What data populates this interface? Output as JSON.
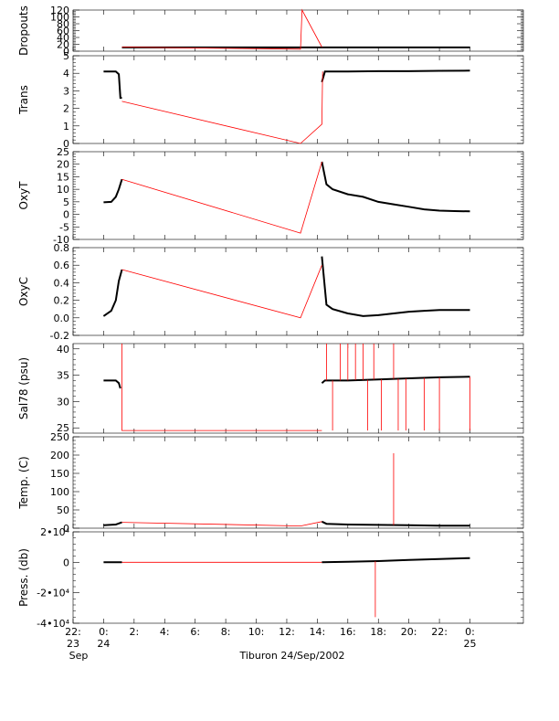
{
  "footer_label": "Tiburon 24/Sep/2002",
  "x_axis": {
    "ticks": [
      {
        "value": -2,
        "label": "22:",
        "sub": "23",
        "sub2": "Sep"
      },
      {
        "value": 0,
        "label": "0:",
        "sub": "24"
      },
      {
        "value": 2,
        "label": "2:"
      },
      {
        "value": 4,
        "label": "4:"
      },
      {
        "value": 6,
        "label": "6:"
      },
      {
        "value": 8,
        "label": "8:"
      },
      {
        "value": 10,
        "label": "10:"
      },
      {
        "value": 12,
        "label": "12:"
      },
      {
        "value": 14,
        "label": "14:"
      },
      {
        "value": 16,
        "label": "16:"
      },
      {
        "value": 18,
        "label": "18:"
      },
      {
        "value": 20,
        "label": "20:"
      },
      {
        "value": 22,
        "label": "22:"
      },
      {
        "value": 24,
        "label": "0:",
        "sub": "25"
      }
    ],
    "range": [
      -2,
      27.5
    ]
  },
  "colors": {
    "good": "#000000",
    "flagged": "#ff0000",
    "axis": "#000000"
  },
  "chart_data": [
    {
      "type": "line",
      "ylabel": "Dropouts",
      "ylim": [
        0,
        120
      ],
      "yticks": [
        {
          "v": 0,
          "label": "0"
        },
        {
          "v": 20,
          "label": "20"
        },
        {
          "v": 40,
          "label": "40"
        },
        {
          "v": 60,
          "label": "60"
        },
        {
          "v": 80,
          "label": "80"
        },
        {
          "v": 100,
          "label": "100"
        },
        {
          "v": 120,
          "label": "120"
        }
      ],
      "series": [
        {
          "role": "good",
          "points": [
            [
              1.2,
              11
            ],
            [
              14.3,
              11
            ],
            [
              16,
              11
            ],
            [
              18,
              11
            ],
            [
              20,
              11
            ],
            [
              22,
              11
            ],
            [
              24,
              11
            ]
          ]
        },
        {
          "role": "flagged",
          "points": [
            [
              1.2,
              12
            ],
            [
              12.9,
              6
            ],
            [
              13.0,
              120
            ],
            [
              14.3,
              12
            ]
          ]
        }
      ]
    },
    {
      "type": "line",
      "ylabel": "Trans",
      "ylim": [
        0,
        5
      ],
      "yticks": [
        {
          "v": 0,
          "label": "0"
        },
        {
          "v": 1,
          "label": "1"
        },
        {
          "v": 2,
          "label": "2"
        },
        {
          "v": 3,
          "label": "3"
        },
        {
          "v": 4,
          "label": "4"
        },
        {
          "v": 5,
          "label": "5"
        }
      ],
      "series": [
        {
          "role": "good",
          "points": [
            [
              0,
              4.1
            ],
            [
              0.8,
              4.1
            ],
            [
              1.0,
              3.95
            ],
            [
              1.1,
              2.6
            ],
            [
              1.2,
              2.6
            ]
          ]
        },
        {
          "role": "good",
          "points": [
            [
              14.3,
              3.5
            ],
            [
              14.5,
              4.1
            ],
            [
              16,
              4.1
            ],
            [
              18,
              4.12
            ],
            [
              20,
              4.12
            ],
            [
              22,
              4.14
            ],
            [
              24,
              4.15
            ]
          ]
        },
        {
          "role": "flagged",
          "points": [
            [
              1.2,
              2.4
            ],
            [
              12.9,
              -0.3
            ],
            [
              14.3,
              1.1
            ],
            [
              14.35,
              4.1
            ]
          ]
        }
      ]
    },
    {
      "type": "line",
      "ylabel": "OxyT",
      "ylim": [
        -10,
        25
      ],
      "yticks": [
        {
          "v": -10,
          "label": "-10"
        },
        {
          "v": -5,
          "label": "-5"
        },
        {
          "v": 0,
          "label": "0"
        },
        {
          "v": 5,
          "label": "5"
        },
        {
          "v": 10,
          "label": "10"
        },
        {
          "v": 15,
          "label": "15"
        },
        {
          "v": 20,
          "label": "20"
        },
        {
          "v": 25,
          "label": "25"
        }
      ],
      "series": [
        {
          "role": "good",
          "points": [
            [
              0,
              4.8
            ],
            [
              0.5,
              5
            ],
            [
              0.8,
              7
            ],
            [
              1.0,
              10
            ],
            [
              1.2,
              14
            ]
          ]
        },
        {
          "role": "good",
          "points": [
            [
              14.3,
              21
            ],
            [
              14.6,
              12
            ],
            [
              15,
              10
            ],
            [
              16,
              8
            ],
            [
              17,
              7
            ],
            [
              18,
              5
            ],
            [
              19,
              4
            ],
            [
              20,
              3
            ],
            [
              21,
              2
            ],
            [
              22,
              1.5
            ],
            [
              23,
              1.3
            ],
            [
              24,
              1.2
            ]
          ]
        },
        {
          "role": "flagged",
          "points": [
            [
              1.2,
              14
            ],
            [
              12.9,
              -7.5
            ],
            [
              14.3,
              21
            ]
          ]
        }
      ]
    },
    {
      "type": "line",
      "ylabel": "OxyC",
      "ylim": [
        -0.2,
        0.8
      ],
      "yticks": [
        {
          "v": -0.2,
          "label": "-0.2"
        },
        {
          "v": 0.0,
          "label": "0.0"
        },
        {
          "v": 0.2,
          "label": "0.2"
        },
        {
          "v": 0.4,
          "label": "0.4"
        },
        {
          "v": 0.6,
          "label": "0.6"
        },
        {
          "v": 0.8,
          "label": "0.8"
        }
      ],
      "series": [
        {
          "role": "good",
          "points": [
            [
              0,
              0.02
            ],
            [
              0.5,
              0.08
            ],
            [
              0.8,
              0.2
            ],
            [
              1.0,
              0.42
            ],
            [
              1.2,
              0.55
            ]
          ]
        },
        {
          "role": "good",
          "points": [
            [
              14.3,
              0.7
            ],
            [
              14.6,
              0.15
            ],
            [
              15,
              0.1
            ],
            [
              16,
              0.05
            ],
            [
              17,
              0.02
            ],
            [
              18,
              0.03
            ],
            [
              19,
              0.05
            ],
            [
              20,
              0.07
            ],
            [
              21,
              0.08
            ],
            [
              22,
              0.09
            ],
            [
              23,
              0.09
            ],
            [
              24,
              0.09
            ]
          ]
        },
        {
          "role": "flagged",
          "points": [
            [
              1.2,
              0.55
            ],
            [
              12.9,
              0.0
            ],
            [
              14.3,
              0.6
            ]
          ]
        }
      ]
    },
    {
      "type": "line",
      "ylabel": "Sal78 (psu)",
      "ylim": [
        24,
        41
      ],
      "yticks": [
        {
          "v": 25,
          "label": "25"
        },
        {
          "v": 30,
          "label": "30"
        },
        {
          "v": 35,
          "label": "35"
        },
        {
          "v": 40,
          "label": "40"
        }
      ],
      "series": [
        {
          "role": "good",
          "points": [
            [
              0,
              34
            ],
            [
              0.8,
              34
            ],
            [
              1.0,
              33.5
            ],
            [
              1.1,
              32.5
            ]
          ]
        },
        {
          "role": "good",
          "points": [
            [
              14.3,
              33.5
            ],
            [
              14.5,
              34
            ],
            [
              16,
              34
            ],
            [
              18,
              34.2
            ],
            [
              20,
              34.4
            ],
            [
              22,
              34.6
            ],
            [
              24,
              34.7
            ]
          ]
        },
        {
          "role": "flagged",
          "points": [
            [
              1.2,
              41
            ],
            [
              1.2,
              24.5
            ],
            [
              14.3,
              24.5
            ]
          ]
        }
      ],
      "spikes": [
        [
          14.6,
          41
        ],
        [
          15.0,
          24.5
        ],
        [
          15.5,
          41
        ],
        [
          16.0,
          41
        ],
        [
          16.5,
          41
        ],
        [
          17.0,
          41
        ],
        [
          17.3,
          24.5
        ],
        [
          17.7,
          41
        ],
        [
          18.2,
          24.5
        ],
        [
          19.0,
          41
        ],
        [
          19.3,
          24.5
        ],
        [
          19.8,
          24.5
        ],
        [
          21.0,
          24.5
        ],
        [
          22.0,
          24.5
        ],
        [
          24.0,
          24.5
        ]
      ]
    },
    {
      "type": "line",
      "ylabel": "Temp. (C)",
      "ylim": [
        0,
        250
      ],
      "yticks": [
        {
          "v": 0,
          "label": "0"
        },
        {
          "v": 50,
          "label": "50"
        },
        {
          "v": 100,
          "label": "100"
        },
        {
          "v": 150,
          "label": "150"
        },
        {
          "v": 200,
          "label": "200"
        },
        {
          "v": 250,
          "label": "250"
        }
      ],
      "series": [
        {
          "role": "good",
          "points": [
            [
              0,
              8
            ],
            [
              0.8,
              10
            ],
            [
              1.2,
              16
            ]
          ]
        },
        {
          "role": "good",
          "points": [
            [
              14.3,
              18
            ],
            [
              14.6,
              12
            ],
            [
              16,
              10
            ],
            [
              18,
              9
            ],
            [
              20,
              8
            ],
            [
              22,
              7
            ],
            [
              24,
              7
            ]
          ]
        },
        {
          "role": "flagged",
          "points": [
            [
              1.2,
              16
            ],
            [
              12.9,
              6
            ],
            [
              14.3,
              18
            ]
          ]
        }
      ],
      "spikes": [
        [
          19.0,
          205
        ]
      ]
    },
    {
      "type": "line",
      "ylabel": "Press. (db)",
      "ylim": [
        -40000,
        20000
      ],
      "yticks": [
        {
          "v": -40000,
          "label": "-4•10⁴"
        },
        {
          "v": -20000,
          "label": "-2•10⁴"
        },
        {
          "v": 0,
          "label": "0"
        },
        {
          "v": 20000,
          "label": "2•10⁴"
        }
      ],
      "series": [
        {
          "role": "good",
          "points": [
            [
              0,
              0
            ],
            [
              1.2,
              0
            ]
          ]
        },
        {
          "role": "good",
          "points": [
            [
              14.3,
              0
            ],
            [
              16,
              300
            ],
            [
              18,
              800
            ],
            [
              20,
              1500
            ],
            [
              22,
              2200
            ],
            [
              24,
              2800
            ]
          ]
        },
        {
          "role": "flagged",
          "points": [
            [
              1.2,
              0
            ],
            [
              14.3,
              0
            ]
          ]
        }
      ],
      "spikes": [
        [
          17.8,
          -36000
        ]
      ]
    }
  ]
}
